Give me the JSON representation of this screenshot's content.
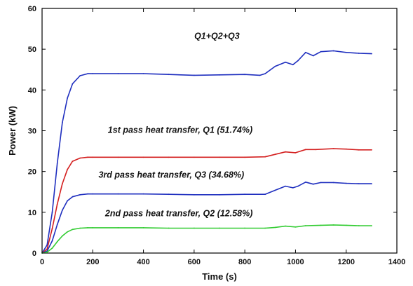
{
  "chart_data": {
    "type": "line",
    "xlabel": "Time (s)",
    "ylabel": "Power (kW)",
    "xlim": [
      0,
      1400
    ],
    "ylim": [
      0,
      60
    ],
    "x_ticks": [
      "0",
      "200",
      "400",
      "600",
      "800",
      "1000",
      "1200",
      "1400"
    ],
    "y_ticks": [
      "0",
      "10",
      "20",
      "30",
      "40",
      "50",
      "60"
    ],
    "grid": false,
    "legend": "none",
    "series": [
      {
        "name": "Q1+Q2+Q3",
        "color": "#1f2fbf",
        "x": [
          0,
          20,
          40,
          60,
          80,
          100,
          120,
          150,
          180,
          200,
          300,
          400,
          500,
          600,
          700,
          800,
          860,
          880,
          920,
          960,
          990,
          1010,
          1040,
          1070,
          1100,
          1150,
          1200,
          1250,
          1300
        ],
        "y": [
          0,
          2,
          10,
          22,
          32,
          38,
          41.5,
          43.5,
          44,
          44,
          44,
          44,
          43.8,
          43.6,
          43.7,
          43.8,
          43.6,
          44,
          45.8,
          46.8,
          46.2,
          47.2,
          49.2,
          48.4,
          49.4,
          49.6,
          49.2,
          49,
          48.9
        ]
      },
      {
        "name": "1st pass heat transfer, Q1",
        "color": "#d42020",
        "x": [
          0,
          20,
          40,
          60,
          80,
          100,
          120,
          150,
          180,
          200,
          300,
          400,
          500,
          600,
          700,
          800,
          880,
          920,
          960,
          1000,
          1040,
          1080,
          1150,
          1200,
          1250,
          1300
        ],
        "y": [
          0,
          1,
          6,
          12,
          17,
          20.5,
          22.5,
          23.3,
          23.5,
          23.5,
          23.5,
          23.5,
          23.5,
          23.5,
          23.5,
          23.5,
          23.6,
          24.2,
          24.8,
          24.6,
          25.4,
          25.4,
          25.6,
          25.5,
          25.3,
          25.3
        ]
      },
      {
        "name": "3rd pass heat transfer, Q3",
        "color": "#1f2fbf",
        "x": [
          0,
          20,
          40,
          60,
          80,
          100,
          120,
          150,
          180,
          200,
          300,
          400,
          500,
          600,
          700,
          800,
          880,
          920,
          960,
          990,
          1010,
          1040,
          1070,
          1100,
          1150,
          1200,
          1250,
          1300
        ],
        "y": [
          0,
          0.5,
          3,
          7,
          10.5,
          12.8,
          13.8,
          14.3,
          14.5,
          14.5,
          14.5,
          14.5,
          14.4,
          14.3,
          14.3,
          14.4,
          14.4,
          15.4,
          16.4,
          16,
          16.4,
          17.4,
          16.9,
          17.3,
          17.3,
          17.1,
          17,
          17
        ]
      },
      {
        "name": "2nd pass heat transfer, Q2",
        "color": "#33cc33",
        "x": [
          0,
          20,
          40,
          60,
          80,
          100,
          120,
          150,
          180,
          200,
          300,
          400,
          500,
          600,
          700,
          800,
          880,
          920,
          960,
          1000,
          1040,
          1100,
          1150,
          1200,
          1250,
          1300
        ],
        "y": [
          0,
          0.2,
          1.2,
          2.8,
          4.2,
          5.2,
          5.8,
          6.1,
          6.2,
          6.2,
          6.2,
          6.2,
          6.1,
          6.1,
          6.1,
          6.1,
          6.1,
          6.3,
          6.6,
          6.4,
          6.7,
          6.8,
          6.9,
          6.8,
          6.7,
          6.7
        ]
      }
    ],
    "annotations": [
      {
        "text": "Q1+Q2+Q3",
        "x": 690,
        "y": 52.5
      },
      {
        "text": "1st pass heat transfer, Q1  (51.74%)",
        "x": 545,
        "y": 29.5
      },
      {
        "text": "3rd pass heat transfer, Q3  (34.68%)",
        "x": 510,
        "y": 18.5
      },
      {
        "text": "2nd pass heat transfer, Q2  (12.58%)",
        "x": 540,
        "y": 9
      }
    ]
  }
}
